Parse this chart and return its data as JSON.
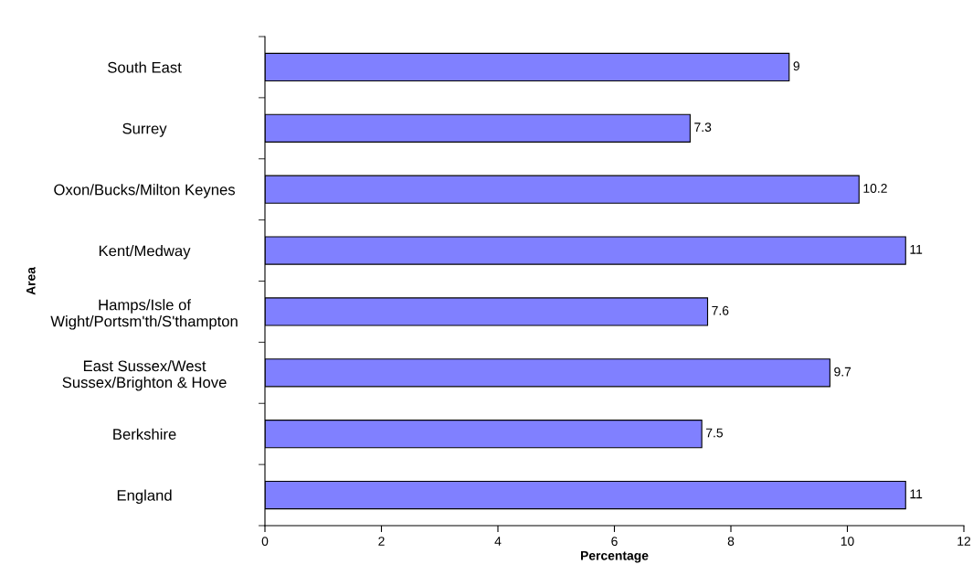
{
  "chart_data": {
    "type": "bar",
    "orientation": "horizontal",
    "xlabel": "Percentage",
    "ylabel": "Area",
    "categories": [
      "South East",
      "Surrey",
      "Oxon/Bucks/Milton Keynes",
      "Kent/Medway",
      "Hamps/Isle of\nWight/Portsm'th/S'thampton",
      "East Sussex/West\nSussex/Brighton & Hove",
      "Berkshire",
      "England"
    ],
    "values": [
      9,
      7.3,
      10.2,
      11,
      7.6,
      9.7,
      7.5,
      11
    ],
    "color": "#8080ff",
    "xlim": [
      0,
      12
    ],
    "xticks": [
      0,
      2,
      4,
      6,
      8,
      10,
      12
    ],
    "grid": false,
    "data_labels": true
  }
}
